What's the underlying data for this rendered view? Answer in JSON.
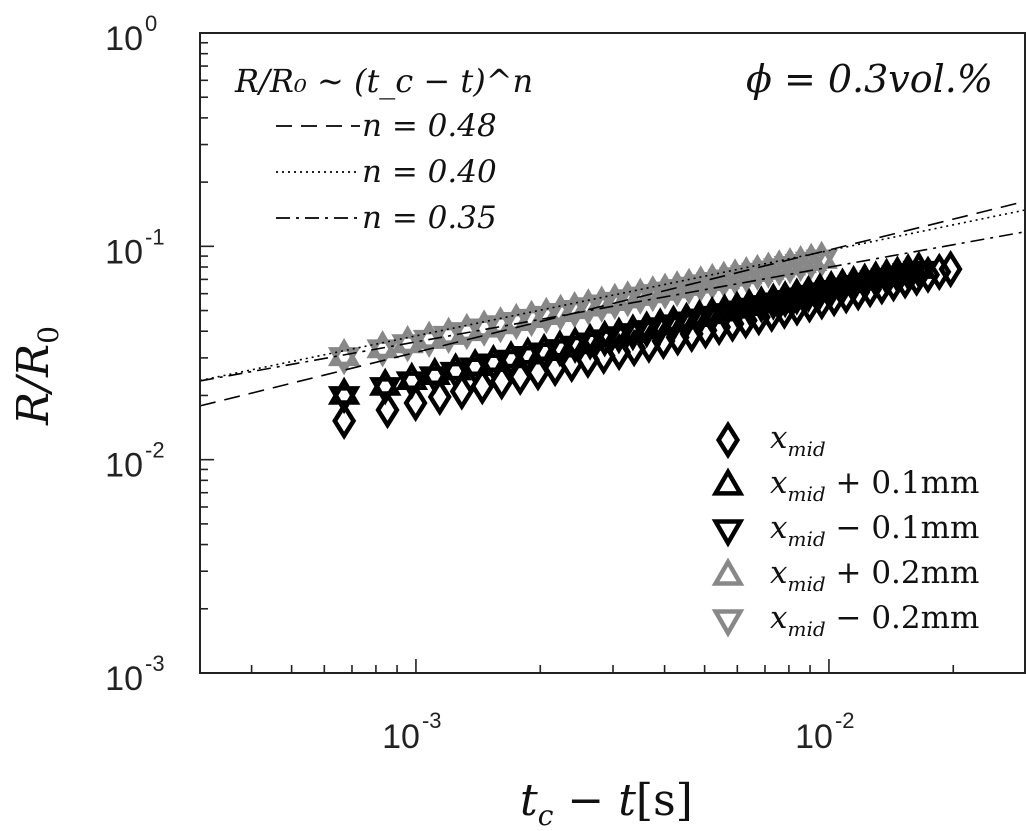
{
  "chart_data": {
    "type": "scatter",
    "xscale": "log",
    "yscale": "log",
    "xlim": [
      0.0003,
      0.03
    ],
    "ylim": [
      0.001,
      1
    ],
    "grid": false,
    "xlabel": {
      "main": "t",
      "sub": "c",
      "rest": " − t",
      "unit": "[s]"
    },
    "ylabel": {
      "main": "R/R",
      "sub": "0"
    },
    "x_ticks": [
      {
        "base": "10",
        "exp": "-3",
        "value": 0.001
      },
      {
        "base": "10",
        "exp": "-2",
        "value": 0.01
      }
    ],
    "y_ticks": [
      {
        "base": "10",
        "exp": "0",
        "value": 1
      },
      {
        "base": "10",
        "exp": "-1",
        "value": 0.1
      },
      {
        "base": "10",
        "exp": "-2",
        "value": 0.01
      },
      {
        "base": "10",
        "exp": "-3",
        "value": 0.001
      }
    ],
    "annotation_phi": "ϕ = 0.3vol.%",
    "fit_legend": {
      "title": "R/R₀ ∼ (t_c − t)^n",
      "entries": [
        {
          "label": "n = 0.48",
          "style": "dashed",
          "n": 0.48,
          "a": 0.877
        },
        {
          "label": "n = 0.40",
          "style": "dotted",
          "n": 0.4,
          "a": 0.603
        },
        {
          "label": "n = 0.35",
          "style": "dashdot",
          "n": 0.35,
          "a": 0.4
        }
      ]
    },
    "series": [
      {
        "name": "x_mid",
        "label_main": "x",
        "label_sub": "mid",
        "label_rest": "",
        "marker": "diamond",
        "color": "#000000",
        "x0": 0.00067,
        "x1": 0.0197,
        "y0": 0.0152,
        "y1": 0.0782,
        "points": 40
      },
      {
        "name": "x_mid + 0.1mm",
        "label_main": "x",
        "label_sub": "mid",
        "label_rest": " + 0.1mm",
        "marker": "triangle-up",
        "color": "#000000",
        "x0": 0.00067,
        "x1": 0.0165,
        "y0": 0.0203,
        "y1": 0.079,
        "points": 40
      },
      {
        "name": "x_mid − 0.1mm",
        "label_main": "x",
        "label_sub": "mid",
        "label_rest": " − 0.1mm",
        "marker": "triangle-down",
        "color": "#000000",
        "x0": 0.00067,
        "x1": 0.0165,
        "y0": 0.0197,
        "y1": 0.0762,
        "points": 40
      },
      {
        "name": "x_mid + 0.2mm",
        "label_main": "x",
        "label_sub": "mid",
        "label_rest": " + 0.2mm",
        "marker": "triangle-up",
        "color": "#888888",
        "x0": 0.00067,
        "x1": 0.0096,
        "y0": 0.0308,
        "y1": 0.088,
        "points": 34
      },
      {
        "name": "x_mid − 0.2mm",
        "label_main": "x",
        "label_sub": "mid",
        "label_rest": " − 0.2mm",
        "marker": "triangle-down",
        "color": "#888888",
        "x0": 0.00067,
        "x1": 0.0096,
        "y0": 0.03,
        "y1": 0.086,
        "points": 34
      }
    ]
  }
}
